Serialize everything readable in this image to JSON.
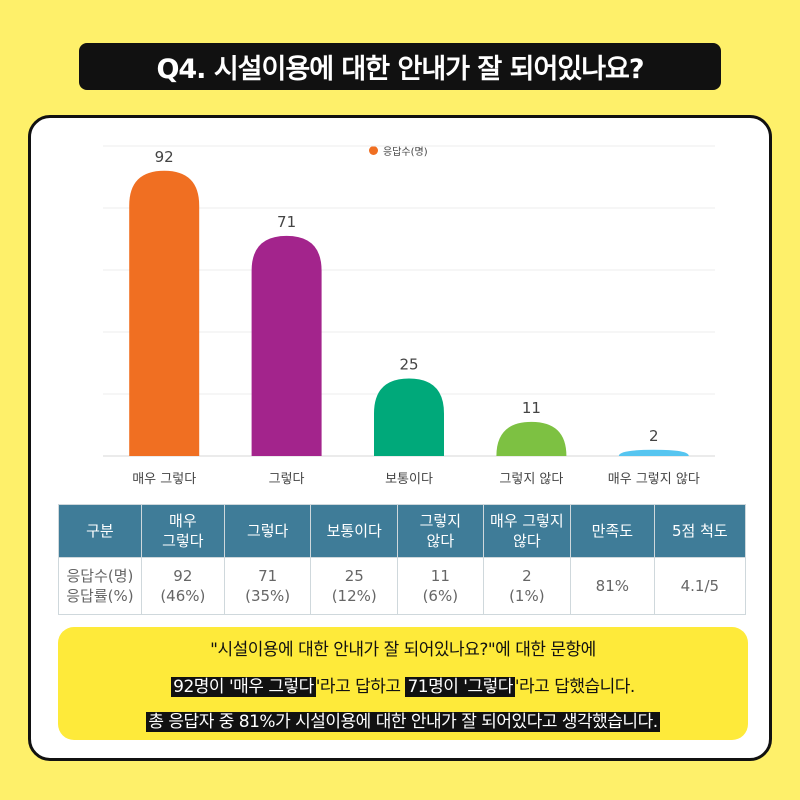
{
  "header": {
    "title": "Q4. 시설이용에 대한 안내가 잘 되어있나요?"
  },
  "chart_data": {
    "type": "bar",
    "legend": {
      "label": "응답수(명)",
      "placement": "top"
    },
    "categories": [
      "매우 그렇다",
      "그렇다",
      "보통이다",
      "그렇지 않다",
      "매우 그렇지 않다"
    ],
    "series": [
      {
        "name": "응답수(명)",
        "values": [
          92,
          71,
          25,
          11,
          2
        ]
      }
    ],
    "colors": [
      "#F06F22",
      "#A3248C",
      "#00A97A",
      "#7DC142",
      "#56C5F0"
    ],
    "ylim": [
      0,
      100
    ],
    "grid": true
  },
  "table": {
    "headers": [
      "구분",
      "매우\n그렇다",
      "그렇다",
      "보통이다",
      "그렇지\n않다",
      "매우 그렇지\n않다",
      "만족도",
      "5점 척도"
    ],
    "row_label": "응답수(명)\n응답률(%)",
    "cells": [
      "92\n(46%)",
      "71\n(35%)",
      "25\n(12%)",
      "11\n(6%)",
      "2\n(1%)",
      "81%",
      "4.1/5"
    ]
  },
  "summary": {
    "line1": "\"시설이용에 대한 안내가 잘 되어있나요?\"에 대한 문항에",
    "line2": [
      {
        "text": "92명이 '매우 그렇다",
        "highlight": true
      },
      {
        "text": "'라고 답하고 ",
        "highlight": false
      },
      {
        "text": "71명이 '그렇다",
        "highlight": true
      },
      {
        "text": "'라고 답했습니다.",
        "highlight": false
      }
    ],
    "line3": "총 응답자 중 81%가 시설이용에 대한 안내가 잘 되어있다고 생각했습니다."
  }
}
